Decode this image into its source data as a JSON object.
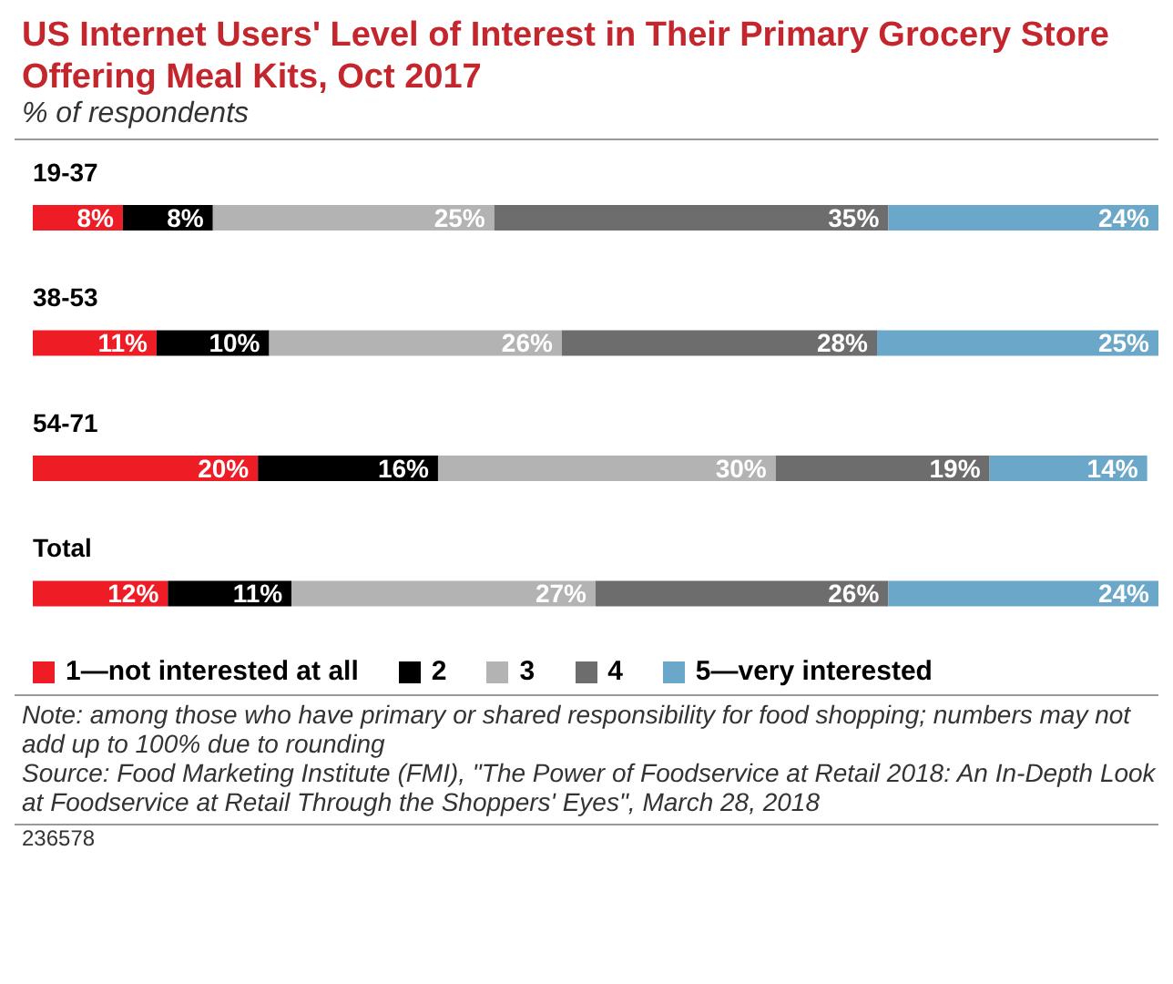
{
  "chart_data": {
    "type": "bar",
    "orientation": "horizontal",
    "stacked": true,
    "title": "US Internet Users' Level of Interest in Their Primary Grocery Store Offering Meal Kits, Oct 2017",
    "subtitle": "% of respondents",
    "categories": [
      "19-37",
      "38-53",
      "54-71",
      "Total"
    ],
    "series": [
      {
        "name": "1—not interested at all",
        "color": "#ee1c25",
        "values": [
          8,
          11,
          20,
          12
        ],
        "value_labels": [
          "8%",
          "11%",
          "20%",
          "12%"
        ]
      },
      {
        "name": "2",
        "color": "#000000",
        "values": [
          8,
          10,
          16,
          11
        ],
        "value_labels": [
          "8%",
          "10%",
          "16%",
          "11%"
        ]
      },
      {
        "name": "3",
        "color": "#b3b3b3",
        "values": [
          25,
          26,
          30,
          27
        ],
        "value_labels": [
          "25%",
          "26%",
          "30%",
          "27%"
        ]
      },
      {
        "name": "4",
        "color": "#6d6d6d",
        "values": [
          35,
          28,
          19,
          26
        ],
        "value_labels": [
          "35%",
          "28%",
          "19%",
          "26%"
        ]
      },
      {
        "name": "5—very interested",
        "color": "#6aa7c8",
        "values": [
          24,
          25,
          14,
          24
        ],
        "value_labels": [
          "24%",
          "25%",
          "14%",
          "24%"
        ]
      }
    ],
    "xlim": [
      0,
      100
    ],
    "tick_labels": false,
    "legend": "bottom",
    "grid": false,
    "annotations": [
      "Note: among those who have primary or shared responsibility for food shopping; numbers may not add up to 100% due to rounding",
      "Source: Food Marketing Institute (FMI), \"The Power of Foodservice at Retail 2018: An In-Depth Look at Foodservice at Retail Through the Shoppers' Eyes\", March 28, 2018",
      "236578"
    ]
  }
}
